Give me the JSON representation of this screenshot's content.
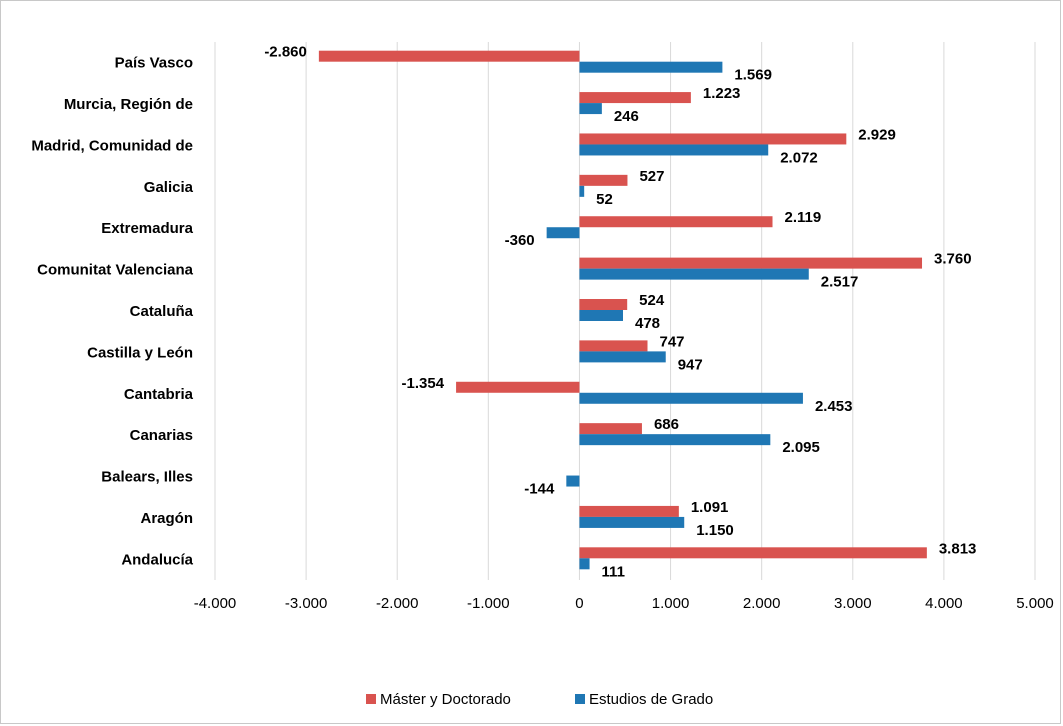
{
  "chart_data": {
    "type": "bar",
    "orientation": "horizontal",
    "categories": [
      "País Vasco",
      "Murcia, Región de",
      "Madrid, Comunidad de",
      "Galicia",
      "Extremadura",
      "Comunitat Valenciana",
      "Cataluña",
      "Castilla y León",
      "Cantabria",
      "Canarias",
      "Balears, Illes",
      "Aragón",
      "Andalucía"
    ],
    "series": [
      {
        "name": "Máster y Doctorado",
        "color": "#d9534f",
        "values": [
          -2860,
          1223,
          2929,
          527,
          2119,
          3760,
          524,
          747,
          -1354,
          686,
          null,
          1091,
          3813
        ],
        "labels": [
          "-2.860",
          "1.223",
          "2.929",
          "527",
          "2.119",
          "3.760",
          "524",
          "747",
          "-1.354",
          "686",
          "",
          "1.091",
          "3.813"
        ]
      },
      {
        "name": "Estudios de Grado",
        "color": "#1f77b4",
        "values": [
          1569,
          246,
          2072,
          52,
          -360,
          2517,
          478,
          947,
          2453,
          2095,
          -144,
          1150,
          111
        ],
        "labels": [
          "1.569",
          "246",
          "2.072",
          "52",
          "-360",
          "2.517",
          "478",
          "947",
          "2.453",
          "2.095",
          "-144",
          "1.150",
          "111"
        ]
      }
    ],
    "xlim": [
      -4000,
      5000
    ],
    "xticks": [
      -4000,
      -3000,
      -2000,
      -1000,
      0,
      1000,
      2000,
      3000,
      4000,
      5000
    ],
    "xtick_labels": [
      "-4.000",
      "-3.000",
      "-2.000",
      "-1.000",
      "0",
      "1.000",
      "2.000",
      "3.000",
      "4.000",
      "5.000"
    ],
    "grid": "vertical",
    "legend_position": "bottom"
  }
}
